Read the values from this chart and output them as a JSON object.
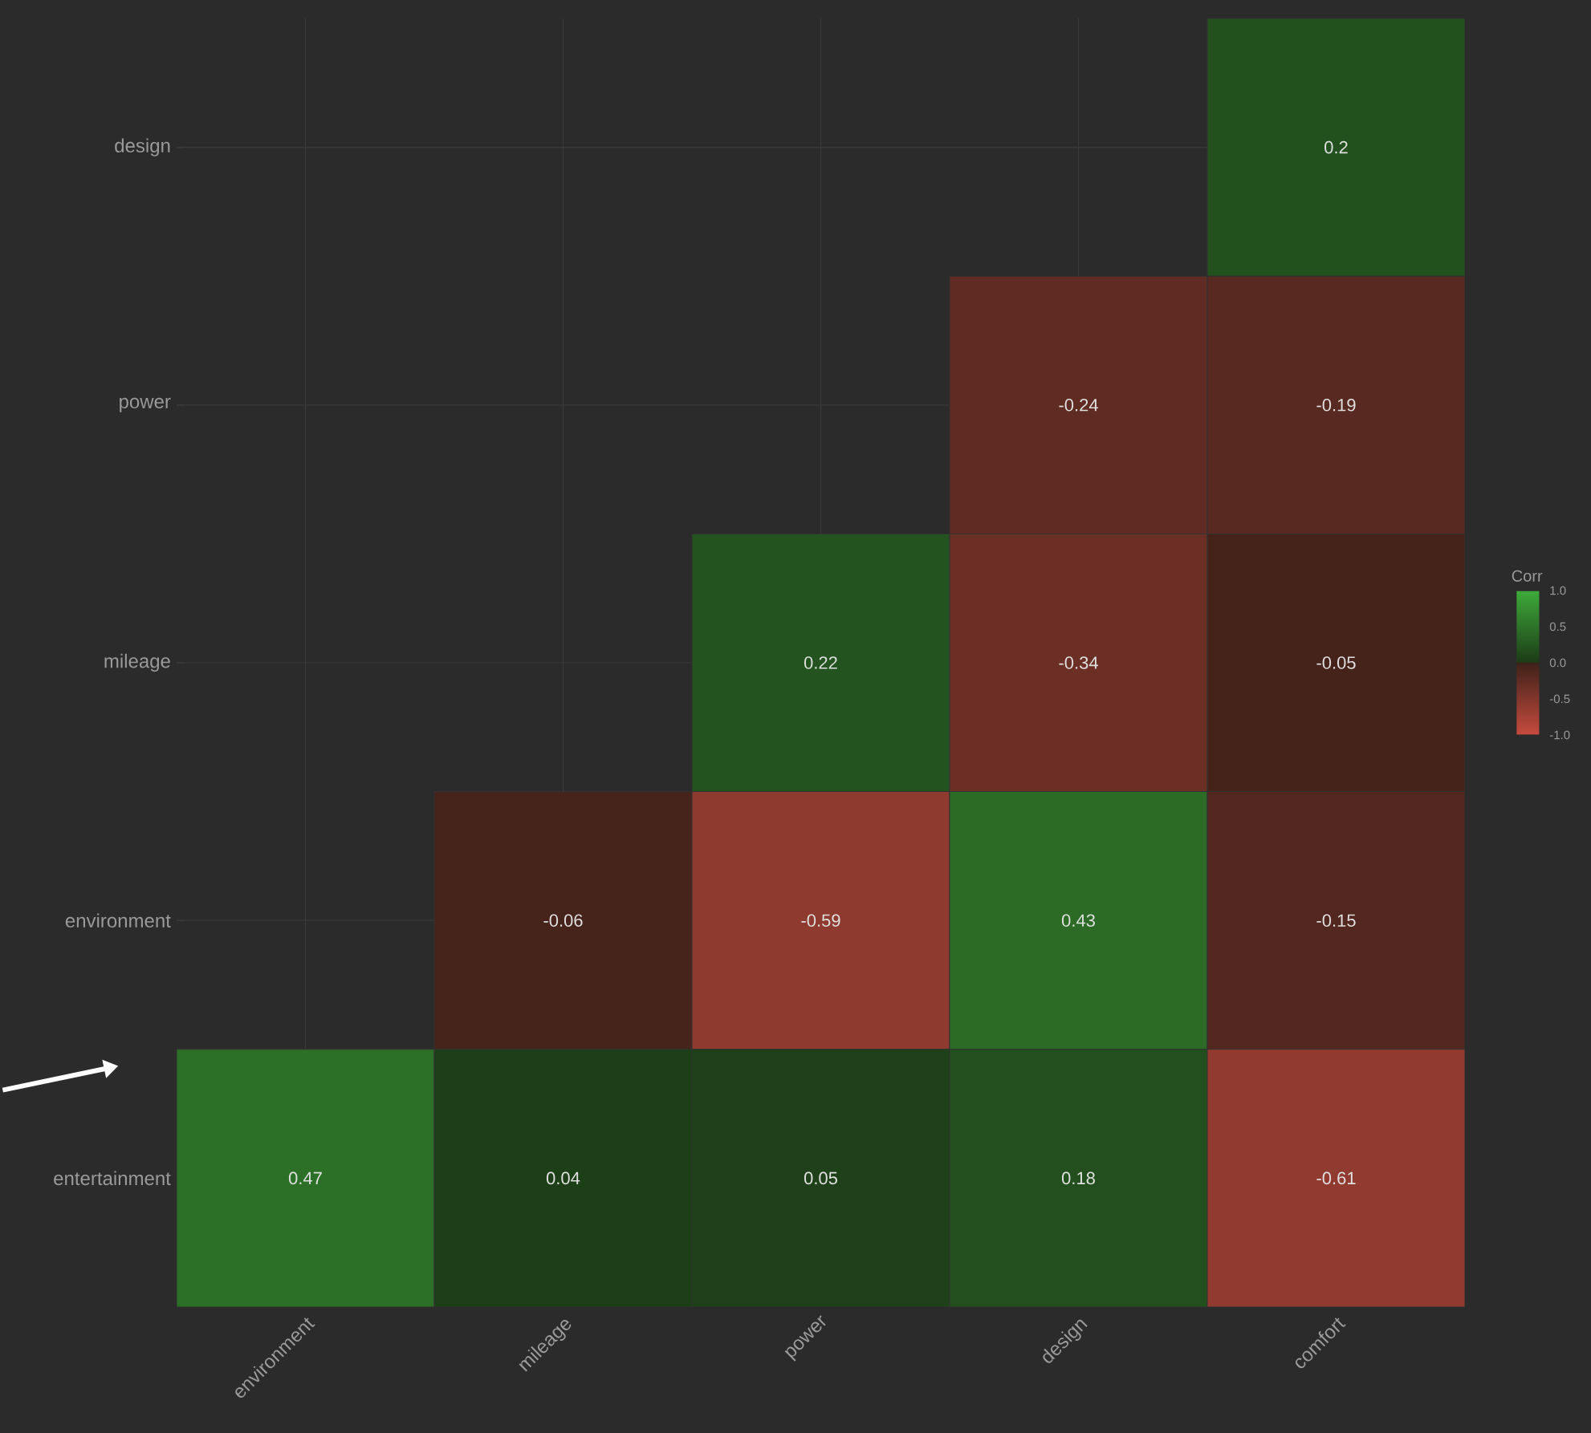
{
  "chart_data": {
    "type": "heatmap",
    "categories": [
      "environment",
      "mileage",
      "power",
      "design",
      "comfort"
    ],
    "y_categories": [
      "design",
      "power",
      "mileage",
      "environment",
      "entertainment"
    ],
    "cells": [
      [
        null,
        null,
        null,
        null,
        0.2
      ],
      [
        null,
        null,
        null,
        -0.24,
        -0.19
      ],
      [
        null,
        null,
        0.22,
        -0.34,
        -0.05
      ],
      [
        null,
        -0.06,
        -0.59,
        0.43,
        -0.15
      ],
      [
        0.47,
        0.04,
        0.05,
        0.18,
        -0.61
      ]
    ],
    "data_labels": true,
    "clabel": "Corr",
    "clim": [
      -1,
      1
    ],
    "cticks": [
      {
        "value": -1,
        "label": "-1.0"
      },
      {
        "value": -0.5,
        "label": "-0.5"
      },
      {
        "value": 0,
        "label": "0.0"
      },
      {
        "value": 0.5,
        "label": "0.5"
      },
      {
        "value": 1,
        "label": "1.0"
      }
    ],
    "colors": [
      "#c64b3e",
      "#3e2119",
      "#1c3b17",
      "#3eab3a"
    ],
    "grid": true
  }
}
